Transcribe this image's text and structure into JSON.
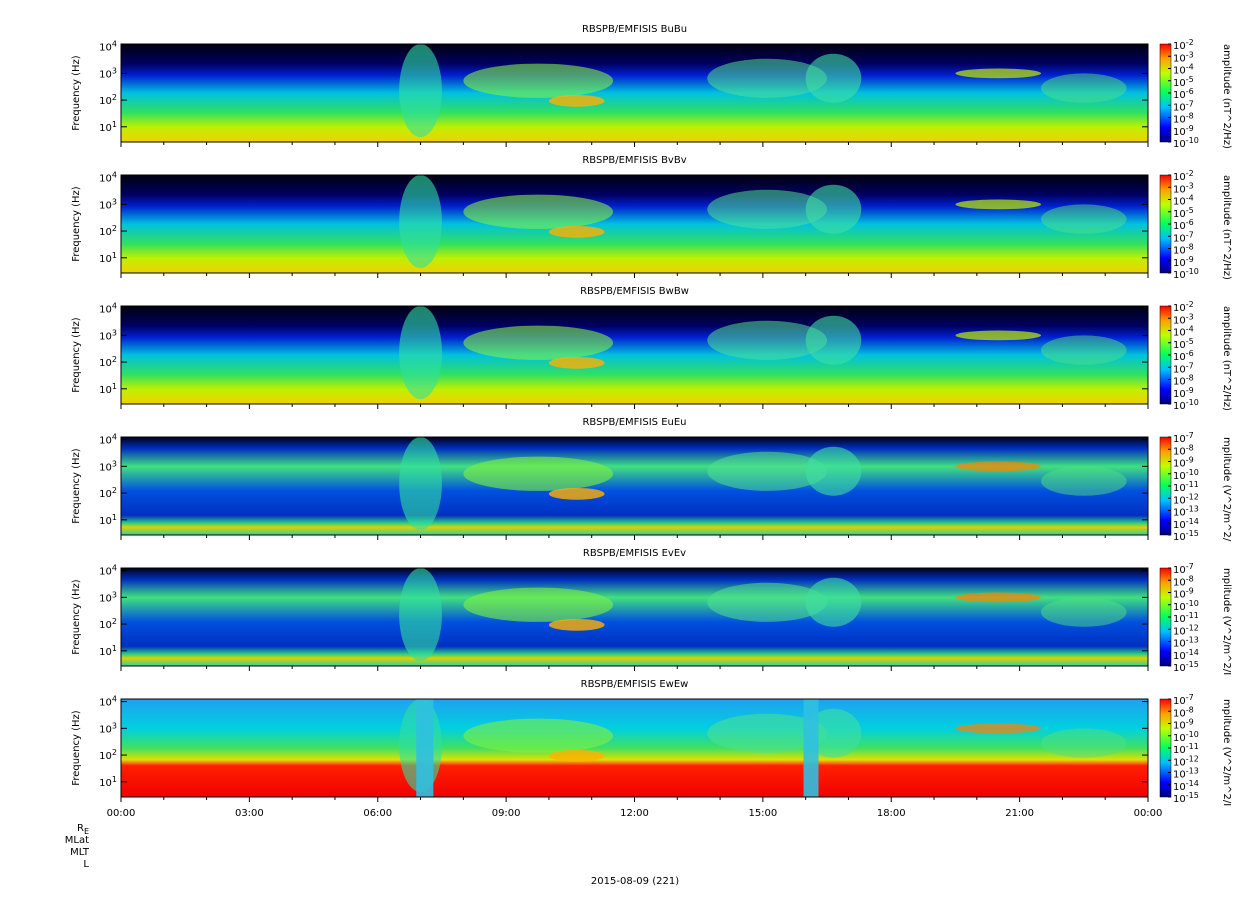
{
  "chart_data": {
    "type": "spectrogram",
    "xlim": [
      0,
      24
    ],
    "xticks": [
      {
        "value": 0,
        "label": "00:00"
      },
      {
        "value": 3,
        "label": "03:00"
      },
      {
        "value": 6,
        "label": "06:00"
      },
      {
        "value": 9,
        "label": "09:00"
      },
      {
        "value": 12,
        "label": "12:00"
      },
      {
        "value": 15,
        "label": "15:00"
      },
      {
        "value": 18,
        "label": "18:00"
      },
      {
        "value": 21,
        "label": "21:00"
      },
      {
        "value": 24,
        "label": "00:00"
      }
    ],
    "x_minor_ticks": [
      1,
      2,
      4,
      5,
      7,
      8,
      10,
      11,
      13,
      14,
      16,
      17,
      19,
      20,
      22,
      23
    ],
    "x_label": "2015-08-09 (221)",
    "orbit_labels": [
      {
        "label": "R",
        "sub": "E"
      },
      {
        "label": "MLat"
      },
      {
        "label": "MLT"
      },
      {
        "label": "L"
      }
    ],
    "panels": [
      {
        "title": "RBSPB/EMFISIS  BuBu",
        "kind": "B",
        "ylabel": "Frequency (Hz)",
        "log_y": true,
        "ylim": [
          2.7,
          12500
        ],
        "yticks": [
          {
            "value": 10,
            "label": "10",
            "sup": "1"
          },
          {
            "value": 100,
            "label": "10",
            "sup": "2"
          },
          {
            "value": 1000,
            "label": "10",
            "sup": "3"
          },
          {
            "value": 10000,
            "label": "10",
            "sup": "4"
          }
        ],
        "colorbar_label": "amplitude (nT^2/Hz)",
        "clim": [
          -10,
          -2
        ],
        "cticks": [
          {
            "value": -10,
            "label": "10",
            "sup": "-10"
          },
          {
            "value": -9,
            "label": "10",
            "sup": "-9"
          },
          {
            "value": -8,
            "label": "10",
            "sup": "-8"
          },
          {
            "value": -7,
            "label": "10",
            "sup": "-7"
          },
          {
            "value": -6,
            "label": "10",
            "sup": "-6"
          },
          {
            "value": -5,
            "label": "10",
            "sup": "-5"
          },
          {
            "value": -4,
            "label": "10",
            "sup": "-4"
          },
          {
            "value": -3,
            "label": "10",
            "sup": "-3"
          },
          {
            "value": -2,
            "label": "10",
            "sup": "-2"
          }
        ]
      },
      {
        "title": "RBSPB/EMFISIS  BvBv",
        "kind": "B",
        "ylabel": "Frequency (Hz)",
        "log_y": true,
        "ylim": [
          2.7,
          12500
        ],
        "yticks": [
          {
            "value": 10,
            "label": "10",
            "sup": "1"
          },
          {
            "value": 100,
            "label": "10",
            "sup": "2"
          },
          {
            "value": 1000,
            "label": "10",
            "sup": "3"
          },
          {
            "value": 10000,
            "label": "10",
            "sup": "4"
          }
        ],
        "colorbar_label": "amplitude (nT^2/Hz)",
        "clim": [
          -10,
          -2
        ],
        "cticks": [
          {
            "value": -10,
            "label": "10",
            "sup": "-10"
          },
          {
            "value": -9,
            "label": "10",
            "sup": "-9"
          },
          {
            "value": -8,
            "label": "10",
            "sup": "-8"
          },
          {
            "value": -7,
            "label": "10",
            "sup": "-7"
          },
          {
            "value": -6,
            "label": "10",
            "sup": "-6"
          },
          {
            "value": -5,
            "label": "10",
            "sup": "-5"
          },
          {
            "value": -4,
            "label": "10",
            "sup": "-4"
          },
          {
            "value": -3,
            "label": "10",
            "sup": "-3"
          },
          {
            "value": -2,
            "label": "10",
            "sup": "-2"
          }
        ]
      },
      {
        "title": "RBSPB/EMFISIS  BwBw",
        "kind": "B",
        "ylabel": "Frequency (Hz)",
        "log_y": true,
        "ylim": [
          2.7,
          12500
        ],
        "yticks": [
          {
            "value": 10,
            "label": "10",
            "sup": "1"
          },
          {
            "value": 100,
            "label": "10",
            "sup": "2"
          },
          {
            "value": 1000,
            "label": "10",
            "sup": "3"
          },
          {
            "value": 10000,
            "label": "10",
            "sup": "4"
          }
        ],
        "colorbar_label": "amplitude (nT^2/Hz)",
        "clim": [
          -10,
          -2
        ],
        "cticks": [
          {
            "value": -10,
            "label": "10",
            "sup": "-10"
          },
          {
            "value": -9,
            "label": "10",
            "sup": "-9"
          },
          {
            "value": -8,
            "label": "10",
            "sup": "-8"
          },
          {
            "value": -7,
            "label": "10",
            "sup": "-7"
          },
          {
            "value": -6,
            "label": "10",
            "sup": "-6"
          },
          {
            "value": -5,
            "label": "10",
            "sup": "-5"
          },
          {
            "value": -4,
            "label": "10",
            "sup": "-4"
          },
          {
            "value": -3,
            "label": "10",
            "sup": "-3"
          },
          {
            "value": -2,
            "label": "10",
            "sup": "-2"
          }
        ]
      },
      {
        "title": "RBSPB/EMFISIS  EuEu",
        "kind": "E",
        "ylabel": "Frequency (Hz)",
        "log_y": true,
        "ylim": [
          2.7,
          12500
        ],
        "yticks": [
          {
            "value": 10,
            "label": "10",
            "sup": "1"
          },
          {
            "value": 100,
            "label": "10",
            "sup": "2"
          },
          {
            "value": 1000,
            "label": "10",
            "sup": "3"
          },
          {
            "value": 10000,
            "label": "10",
            "sup": "4"
          }
        ],
        "colorbar_label": "mplitude (V^2/m^2/",
        "clim": [
          -15,
          -7
        ],
        "cticks": [
          {
            "value": -15,
            "label": "10",
            "sup": "-15"
          },
          {
            "value": -14,
            "label": "10",
            "sup": "-14"
          },
          {
            "value": -13,
            "label": "10",
            "sup": "-13"
          },
          {
            "value": -12,
            "label": "10",
            "sup": "-12"
          },
          {
            "value": -11,
            "label": "10",
            "sup": "-11"
          },
          {
            "value": -10,
            "label": "10",
            "sup": "-10"
          },
          {
            "value": -9,
            "label": "10",
            "sup": "-9"
          },
          {
            "value": -8,
            "label": "10",
            "sup": "-8"
          },
          {
            "value": -7,
            "label": "10",
            "sup": "-7"
          }
        ]
      },
      {
        "title": "RBSPB/EMFISIS  EvEv",
        "kind": "E",
        "ylabel": "Frequency (Hz)",
        "log_y": true,
        "ylim": [
          2.7,
          12500
        ],
        "yticks": [
          {
            "value": 10,
            "label": "10",
            "sup": "1"
          },
          {
            "value": 100,
            "label": "10",
            "sup": "2"
          },
          {
            "value": 1000,
            "label": "10",
            "sup": "3"
          },
          {
            "value": 10000,
            "label": "10",
            "sup": "4"
          }
        ],
        "colorbar_label": "mplitude (V^2/m^2/I",
        "clim": [
          -15,
          -7
        ],
        "cticks": [
          {
            "value": -15,
            "label": "10",
            "sup": "-15"
          },
          {
            "value": -14,
            "label": "10",
            "sup": "-14"
          },
          {
            "value": -13,
            "label": "10",
            "sup": "-13"
          },
          {
            "value": -12,
            "label": "10",
            "sup": "-12"
          },
          {
            "value": -11,
            "label": "10",
            "sup": "-11"
          },
          {
            "value": -10,
            "label": "10",
            "sup": "-10"
          },
          {
            "value": -9,
            "label": "10",
            "sup": "-9"
          },
          {
            "value": -8,
            "label": "10",
            "sup": "-8"
          },
          {
            "value": -7,
            "label": "10",
            "sup": "-7"
          }
        ]
      },
      {
        "title": "RBSPB/EMFISIS  EwEw",
        "kind": "Ew",
        "ylabel": "Frequency (Hz)",
        "log_y": true,
        "ylim": [
          2.7,
          12500
        ],
        "yticks": [
          {
            "value": 10,
            "label": "10",
            "sup": "1"
          },
          {
            "value": 100,
            "label": "10",
            "sup": "2"
          },
          {
            "value": 1000,
            "label": "10",
            "sup": "3"
          },
          {
            "value": 10000,
            "label": "10",
            "sup": "4"
          }
        ],
        "colorbar_label": "mplitude (V^2/m^2/I",
        "clim": [
          -15,
          -7
        ],
        "cticks": [
          {
            "value": -15,
            "label": "10",
            "sup": "-15"
          },
          {
            "value": -14,
            "label": "10",
            "sup": "-14"
          },
          {
            "value": -13,
            "label": "10",
            "sup": "-13"
          },
          {
            "value": -12,
            "label": "10",
            "sup": "-12"
          },
          {
            "value": -11,
            "label": "10",
            "sup": "-11"
          },
          {
            "value": -10,
            "label": "10",
            "sup": "-10"
          },
          {
            "value": -9,
            "label": "10",
            "sup": "-9"
          },
          {
            "value": -8,
            "label": "10",
            "sup": "-8"
          },
          {
            "value": -7,
            "label": "10",
            "sup": "-7"
          }
        ]
      }
    ]
  }
}
